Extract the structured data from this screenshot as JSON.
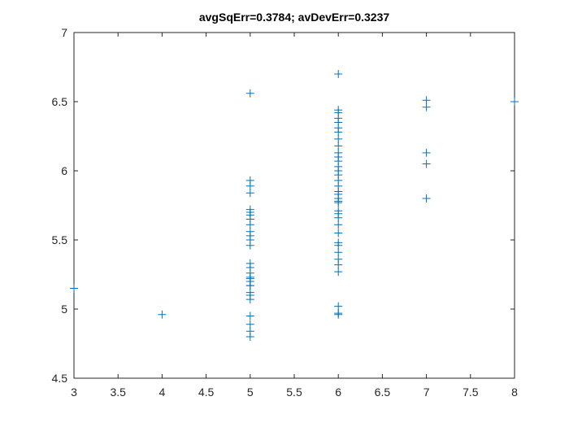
{
  "chart_data": {
    "type": "scatter",
    "title": "avgSqErr=0.3784; avDevErr=0.3237",
    "color": "#0072bd",
    "marker": "+",
    "grid": false,
    "xlim": [
      3,
      8
    ],
    "ylim": [
      4.5,
      7
    ],
    "xticks": [
      3,
      3.5,
      4,
      4.5,
      5,
      5.5,
      6,
      6.5,
      7,
      7.5,
      8
    ],
    "yticks": [
      4.5,
      5,
      5.5,
      6,
      6.5,
      7
    ],
    "x": [
      3,
      4,
      5,
      5,
      5,
      5,
      5,
      5,
      5,
      5,
      5,
      5,
      5,
      5,
      5,
      5,
      5,
      5,
      5,
      5,
      5,
      5,
      5,
      5,
      5,
      5,
      5,
      5,
      5,
      5,
      6,
      6,
      6,
      6,
      6,
      6,
      6,
      6,
      6,
      6,
      6,
      6,
      6,
      6,
      6,
      6,
      6,
      6,
      6,
      6,
      6,
      6,
      6,
      6,
      6,
      6,
      6,
      6,
      6,
      6,
      6,
      6,
      6,
      6,
      6,
      6,
      7,
      7,
      7,
      7,
      7,
      8,
      8
    ],
    "y": [
      5.15,
      4.96,
      6.56,
      5.93,
      5.89,
      5.84,
      5.72,
      5.7,
      5.68,
      5.65,
      5.61,
      5.56,
      5.53,
      5.5,
      5.46,
      5.33,
      5.3,
      5.26,
      5.23,
      5.22,
      5.2,
      5.17,
      5.17,
      5.12,
      5.1,
      5.07,
      4.95,
      4.89,
      4.84,
      4.8,
      6.7,
      6.44,
      6.42,
      6.38,
      6.35,
      6.31,
      6.28,
      6.23,
      6.18,
      6.13,
      6.1,
      6.07,
      6.03,
      6.0,
      5.97,
      5.93,
      5.89,
      5.85,
      5.83,
      5.8,
      5.78,
      5.77,
      5.71,
      5.69,
      5.66,
      5.61,
      5.55,
      5.48,
      5.46,
      5.41,
      5.36,
      5.32,
      5.27,
      5.02,
      4.97,
      4.96,
      6.51,
      6.46,
      6.13,
      6.05,
      5.8,
      6.5,
      6.5
    ]
  }
}
